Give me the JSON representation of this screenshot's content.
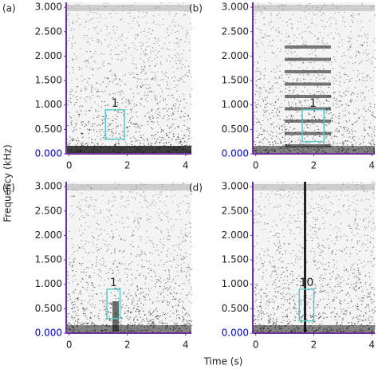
{
  "shared_labels": {
    "x": "Time (s)",
    "y": "Frequency (kHz)"
  },
  "chart_data": [
    {
      "type": "spectrogram",
      "panel_label": "(a)",
      "xlim": [
        -0.1,
        4.2
      ],
      "ylim": [
        0,
        3.1
      ],
      "xticks": [
        0,
        2,
        4
      ],
      "yticks": [
        {
          "value": 0,
          "label": "0.000"
        },
        {
          "value": 0.5,
          "label": "0.500"
        },
        {
          "value": 1,
          "label": "1.000"
        },
        {
          "value": 1.5,
          "label": "1.500"
        },
        {
          "value": 2,
          "label": "2.000"
        },
        {
          "value": 2.5,
          "label": "2.500"
        },
        {
          "value": 3,
          "label": "3.000"
        }
      ],
      "axis_color": "#7030a0",
      "zero_tick_color": "#0000cc",
      "box_color": "#5bc8c8",
      "box": {
        "label": "1",
        "x": [
          1.25,
          1.9
        ],
        "y": [
          0.3,
          0.9
        ]
      }
    },
    {
      "type": "spectrogram",
      "panel_label": "(b)",
      "xlim": [
        -0.1,
        4.1
      ],
      "ylim": [
        0,
        3.1
      ],
      "xticks": [
        0,
        2,
        4
      ],
      "yticks": [
        {
          "value": 0,
          "label": "0.000"
        },
        {
          "value": 0.5,
          "label": "0.500"
        },
        {
          "value": 1,
          "label": "1.000"
        },
        {
          "value": 1.5,
          "label": "1.500"
        },
        {
          "value": 2,
          "label": "2.000"
        },
        {
          "value": 2.5,
          "label": "2.500"
        },
        {
          "value": 3,
          "label": "3.000"
        }
      ],
      "axis_color": "#7030a0",
      "zero_tick_color": "#0000cc",
      "box_color": "#5bc8c8",
      "box": {
        "label": "1",
        "x": [
          1.6,
          2.35
        ],
        "y": [
          0.25,
          0.9
        ]
      }
    },
    {
      "type": "spectrogram",
      "panel_label": "(c)",
      "xlim": [
        -0.1,
        4.2
      ],
      "ylim": [
        0,
        3.1
      ],
      "xticks": [
        0,
        2,
        4
      ],
      "yticks": [
        {
          "value": 0,
          "label": "0.000"
        },
        {
          "value": 0.5,
          "label": "0.500"
        },
        {
          "value": 1,
          "label": "1.000"
        },
        {
          "value": 1.5,
          "label": "1.500"
        },
        {
          "value": 2,
          "label": "2.000"
        },
        {
          "value": 2.5,
          "label": "2.500"
        },
        {
          "value": 3,
          "label": "3.000"
        }
      ],
      "axis_color": "#7030a0",
      "zero_tick_color": "#0000cc",
      "box_color": "#5bc8c8",
      "box": {
        "label": "1",
        "x": [
          1.3,
          1.75
        ],
        "y": [
          0.3,
          0.9
        ]
      }
    },
    {
      "type": "spectrogram",
      "panel_label": "(d)",
      "xlim": [
        -0.1,
        4.1
      ],
      "ylim": [
        0,
        3.1
      ],
      "xticks": [
        0,
        2,
        4
      ],
      "yticks": [
        {
          "value": 0,
          "label": "0.000"
        },
        {
          "value": 0.5,
          "label": "0.500"
        },
        {
          "value": 1,
          "label": "1.000"
        },
        {
          "value": 1.5,
          "label": "1.500"
        },
        {
          "value": 2,
          "label": "2.000"
        },
        {
          "value": 2.5,
          "label": "2.500"
        },
        {
          "value": 3,
          "label": "3.000"
        }
      ],
      "axis_color": "#7030a0",
      "zero_tick_color": "#0000cc",
      "box_color": "#5bc8c8",
      "box": {
        "label": "10",
        "x": [
          1.5,
          2.0
        ],
        "y": [
          0.25,
          0.9
        ]
      }
    }
  ]
}
